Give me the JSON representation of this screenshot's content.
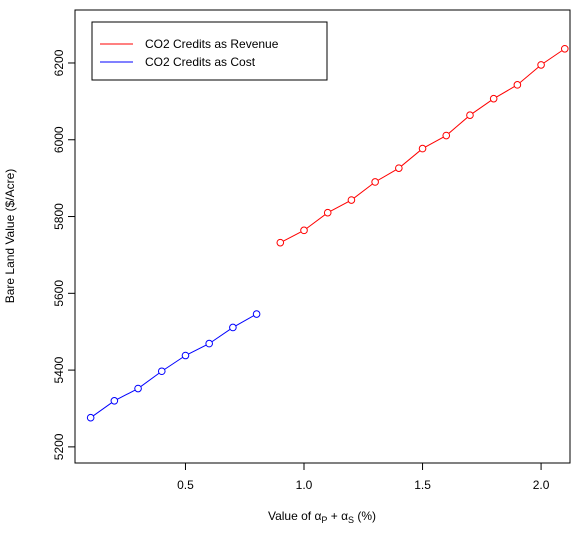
{
  "chart_data": {
    "type": "line",
    "x_label_parts": [
      "Value of ",
      "α",
      "P",
      " + ",
      "α",
      "S",
      " (%)"
    ],
    "y_label": "Bare Land Value ($/Acre)",
    "legend_position": "top-left",
    "series": [
      {
        "name": "CO2 Credits as Revenue",
        "color": "#ff0000",
        "x": [
          0.9,
          1.0,
          1.1,
          1.2,
          1.3,
          1.4,
          1.5,
          1.6,
          1.7,
          1.8,
          1.9,
          2.0,
          2.1
        ],
        "values": [
          5732,
          5764,
          5810,
          5843,
          5890,
          5926,
          5977,
          6011,
          6064,
          6107,
          6143,
          6195,
          6237
        ]
      },
      {
        "name": "CO2 Credits as Cost",
        "color": "#0000ff",
        "x": [
          0.1,
          0.2,
          0.3,
          0.4,
          0.5,
          0.6,
          0.7,
          0.8
        ],
        "values": [
          5276,
          5320,
          5352,
          5397,
          5438,
          5469,
          5511,
          5546
        ]
      }
    ],
    "xlim": [
      0.034,
      2.122
    ],
    "ylim": [
      5158,
      6338
    ],
    "xticks": [
      0.5,
      {
        "value": 1,
        "label": "1.0"
      },
      1.5,
      {
        "value": 2,
        "label": "2.0"
      }
    ],
    "yticks": [
      5200,
      5400,
      5600,
      5800,
      6000,
      6200
    ]
  }
}
